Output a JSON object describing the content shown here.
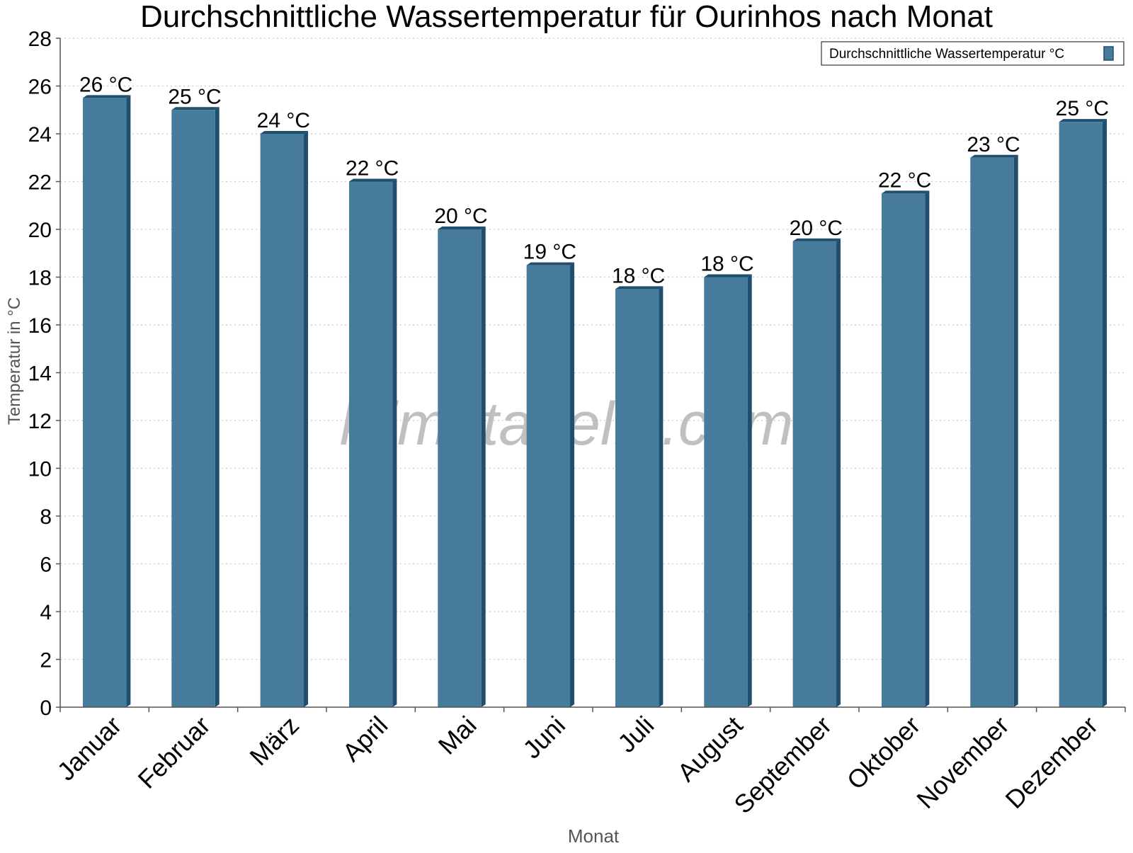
{
  "chart_data": {
    "type": "bar",
    "title": "Durchschnittliche Wassertemperatur für Ourinhos nach Monat",
    "xlabel": "Monat",
    "ylabel": "Temperatur in °C",
    "categories": [
      "Januar",
      "Februar",
      "März",
      "April",
      "Mai",
      "Juni",
      "Juli",
      "August",
      "September",
      "Oktober",
      "November",
      "Dezember"
    ],
    "series": [
      {
        "name": "Durchschnittliche Wassertemperatur °C",
        "values": [
          25.5,
          25.0,
          24.0,
          22.0,
          20.0,
          18.5,
          17.5,
          18.0,
          19.5,
          21.5,
          23.0,
          24.5
        ],
        "labels": [
          "26 °C",
          "25 °C",
          "24 °C",
          "22 °C",
          "20 °C",
          "19 °C",
          "18 °C",
          "18 °C",
          "20 °C",
          "22 °C",
          "23 °C",
          "25 °C"
        ]
      }
    ],
    "ylim": [
      0,
      28
    ],
    "yticks": [
      0,
      2,
      4,
      6,
      8,
      10,
      12,
      14,
      16,
      18,
      20,
      22,
      24,
      26,
      28
    ],
    "grid": true,
    "legend_position": "top-right",
    "colors": {
      "bar": "#467b9c",
      "bar_dark": "#1f4e6e",
      "grid": "#c8c8c8",
      "axis": "#555555"
    }
  },
  "watermark": "klimatabelle.com"
}
